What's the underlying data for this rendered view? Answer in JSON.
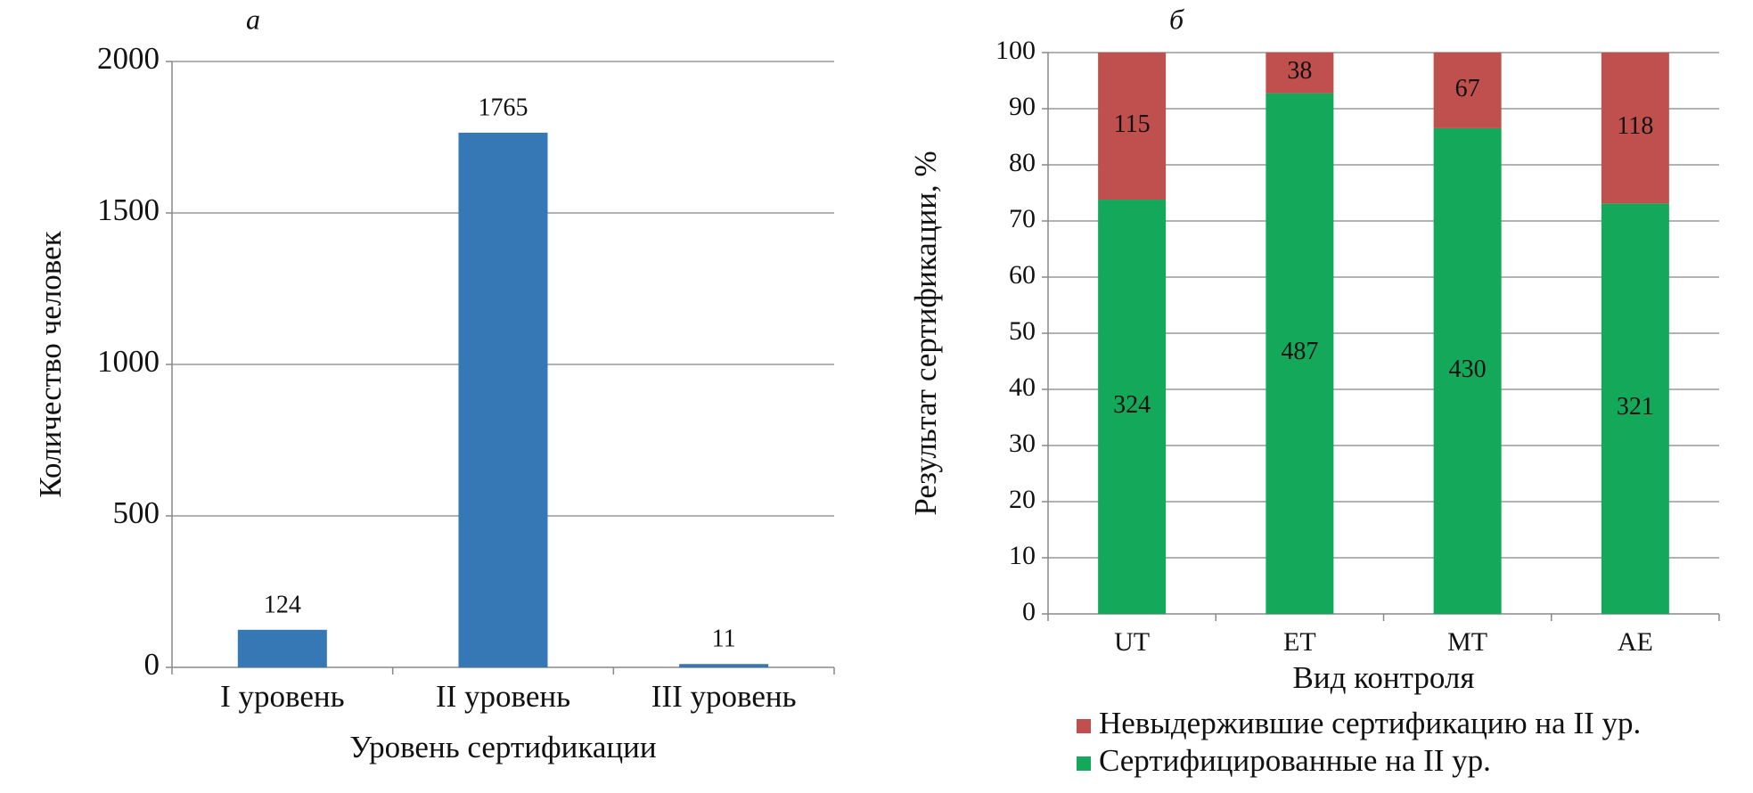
{
  "chart_data": [
    {
      "type": "bar",
      "title": "а",
      "x_label": "Уровень сертификации",
      "y_label": "Количество человек",
      "categories": [
        "I уровень",
        "II уровень",
        "III уровень"
      ],
      "values": [
        124,
        1765,
        11
      ],
      "color": "#3578b5",
      "ylim": [
        0,
        2000
      ],
      "yticks": [
        0,
        500,
        1000,
        1500,
        2000
      ],
      "grid": true
    },
    {
      "type": "stacked-percent-bar",
      "title": "б",
      "x_label": "Вид контроля",
      "y_label": "Результат сертификации, %",
      "categories": [
        "UT",
        "ET",
        "MT",
        "AE"
      ],
      "series": [
        {
          "name": "Сертифицированные на II ур.",
          "color": "#13a85a",
          "values": [
            324,
            487,
            430,
            321
          ]
        },
        {
          "name": "Невыдержившие сертификацию на II ур.",
          "color": "#c0504d",
          "values": [
            115,
            38,
            67,
            118
          ]
        }
      ],
      "ylim": [
        0,
        100
      ],
      "yticks": [
        0,
        10,
        20,
        30,
        40,
        50,
        60,
        70,
        80,
        90,
        100
      ],
      "grid": true,
      "legend": "bottom"
    }
  ]
}
